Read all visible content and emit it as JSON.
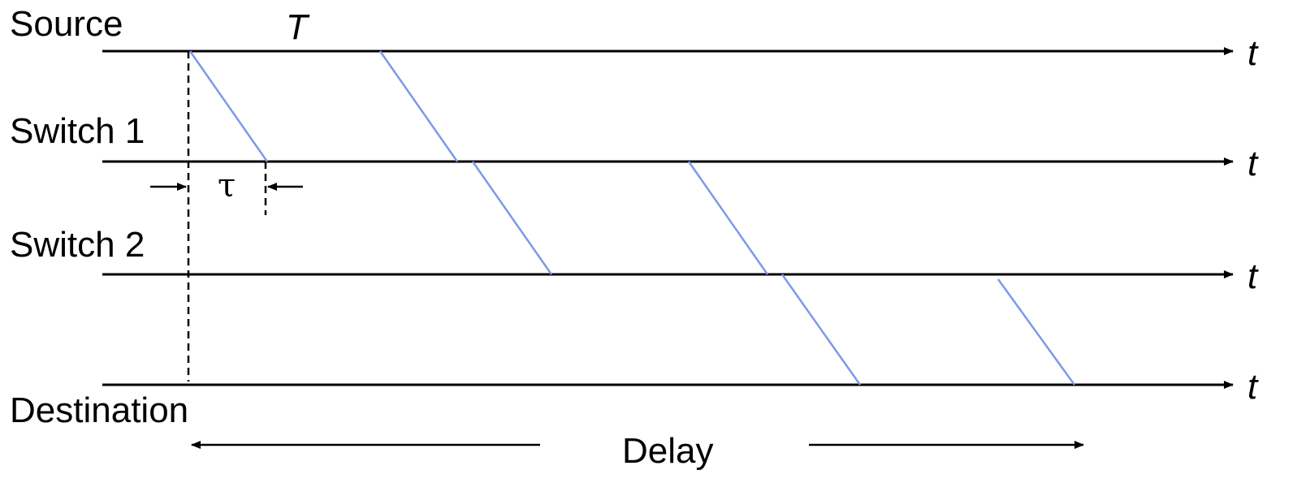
{
  "rows": [
    {
      "label": "Source"
    },
    {
      "label": "Switch 1"
    },
    {
      "label": "Switch 2"
    },
    {
      "label": "Destination"
    }
  ],
  "time_axis_label": "t",
  "packet_time_label": "T",
  "propagation_label": "τ",
  "delay_label": "Delay",
  "colors": {
    "axis": "#000000",
    "packet": "#7a9be8"
  }
}
